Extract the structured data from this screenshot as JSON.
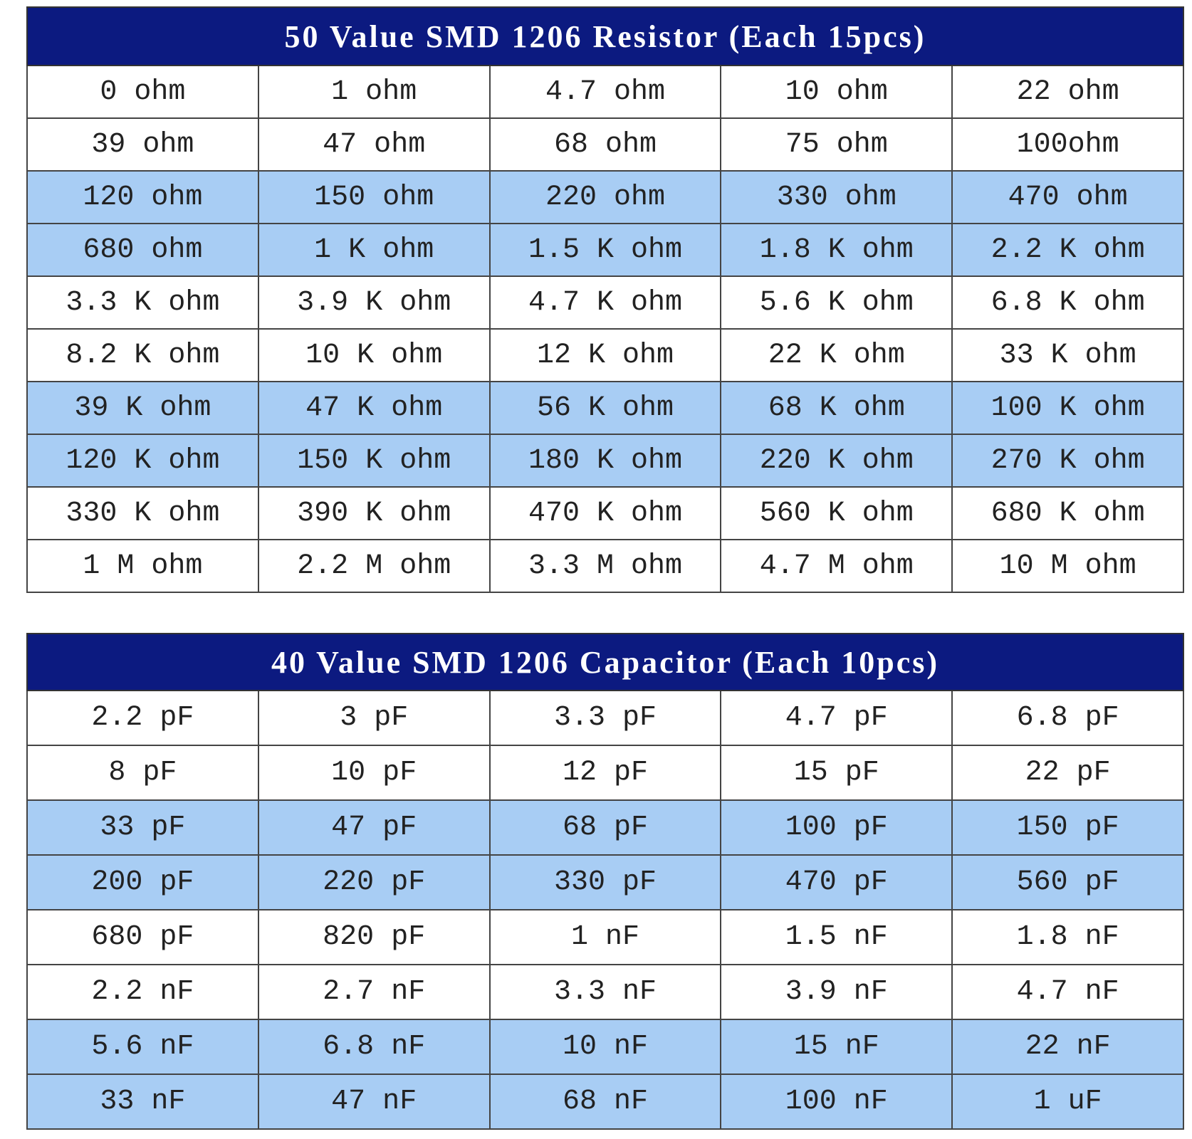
{
  "tables": [
    {
      "title": "50 Value SMD 1206 Resistor (Each 15pcs)",
      "rows": [
        [
          "0 ohm",
          "1 ohm",
          "4.7 ohm",
          "10 ohm",
          "22 ohm"
        ],
        [
          "39 ohm",
          "47 ohm",
          "68 ohm",
          "75 ohm",
          "100ohm"
        ],
        [
          "120 ohm",
          "150 ohm",
          "220 ohm",
          "330 ohm",
          "470 ohm"
        ],
        [
          "680 ohm",
          "1 K ohm",
          "1.5 K ohm",
          "1.8 K ohm",
          "2.2 K ohm"
        ],
        [
          "3.3 K ohm",
          "3.9 K ohm",
          "4.7 K ohm",
          "5.6 K ohm",
          "6.8 K ohm"
        ],
        [
          "8.2 K ohm",
          "10 K ohm",
          "12 K ohm",
          "22 K ohm",
          "33 K ohm"
        ],
        [
          "39 K ohm",
          "47 K ohm",
          "56 K ohm",
          "68 K ohm",
          "100 K ohm"
        ],
        [
          "120 K ohm",
          "150 K ohm",
          "180 K ohm",
          "220 K ohm",
          "270 K ohm"
        ],
        [
          "330 K ohm",
          "390 K ohm",
          "470 K ohm",
          "560 K ohm",
          "680 K ohm"
        ],
        [
          "1 M ohm",
          "2.2 M ohm",
          "3.3 M ohm",
          "4.7 M ohm",
          "10 M ohm"
        ]
      ]
    },
    {
      "title": "40 Value SMD 1206 Capacitor (Each 10pcs)",
      "rows": [
        [
          "2.2 pF",
          "3 pF",
          "3.3 pF",
          "4.7 pF",
          "6.8 pF"
        ],
        [
          "8 pF",
          "10 pF",
          "12 pF",
          "15 pF",
          "22 pF"
        ],
        [
          "33 pF",
          "47 pF",
          "68 pF",
          "100 pF",
          "150 pF"
        ],
        [
          "200 pF",
          "220 pF",
          "330 pF",
          "470 pF",
          "560 pF"
        ],
        [
          "680 pF",
          "820 pF",
          "1 nF",
          "1.5 nF",
          "1.8 nF"
        ],
        [
          "2.2 nF",
          "2.7 nF",
          "3.3 nF",
          "3.9 nF",
          "4.7 nF"
        ],
        [
          "5.6 nF",
          "6.8 nF",
          "10 nF",
          "15 nF",
          "22 nF"
        ],
        [
          "33 nF",
          "47 nF",
          "68 nF",
          "100 nF",
          "1 uF"
        ]
      ]
    }
  ]
}
